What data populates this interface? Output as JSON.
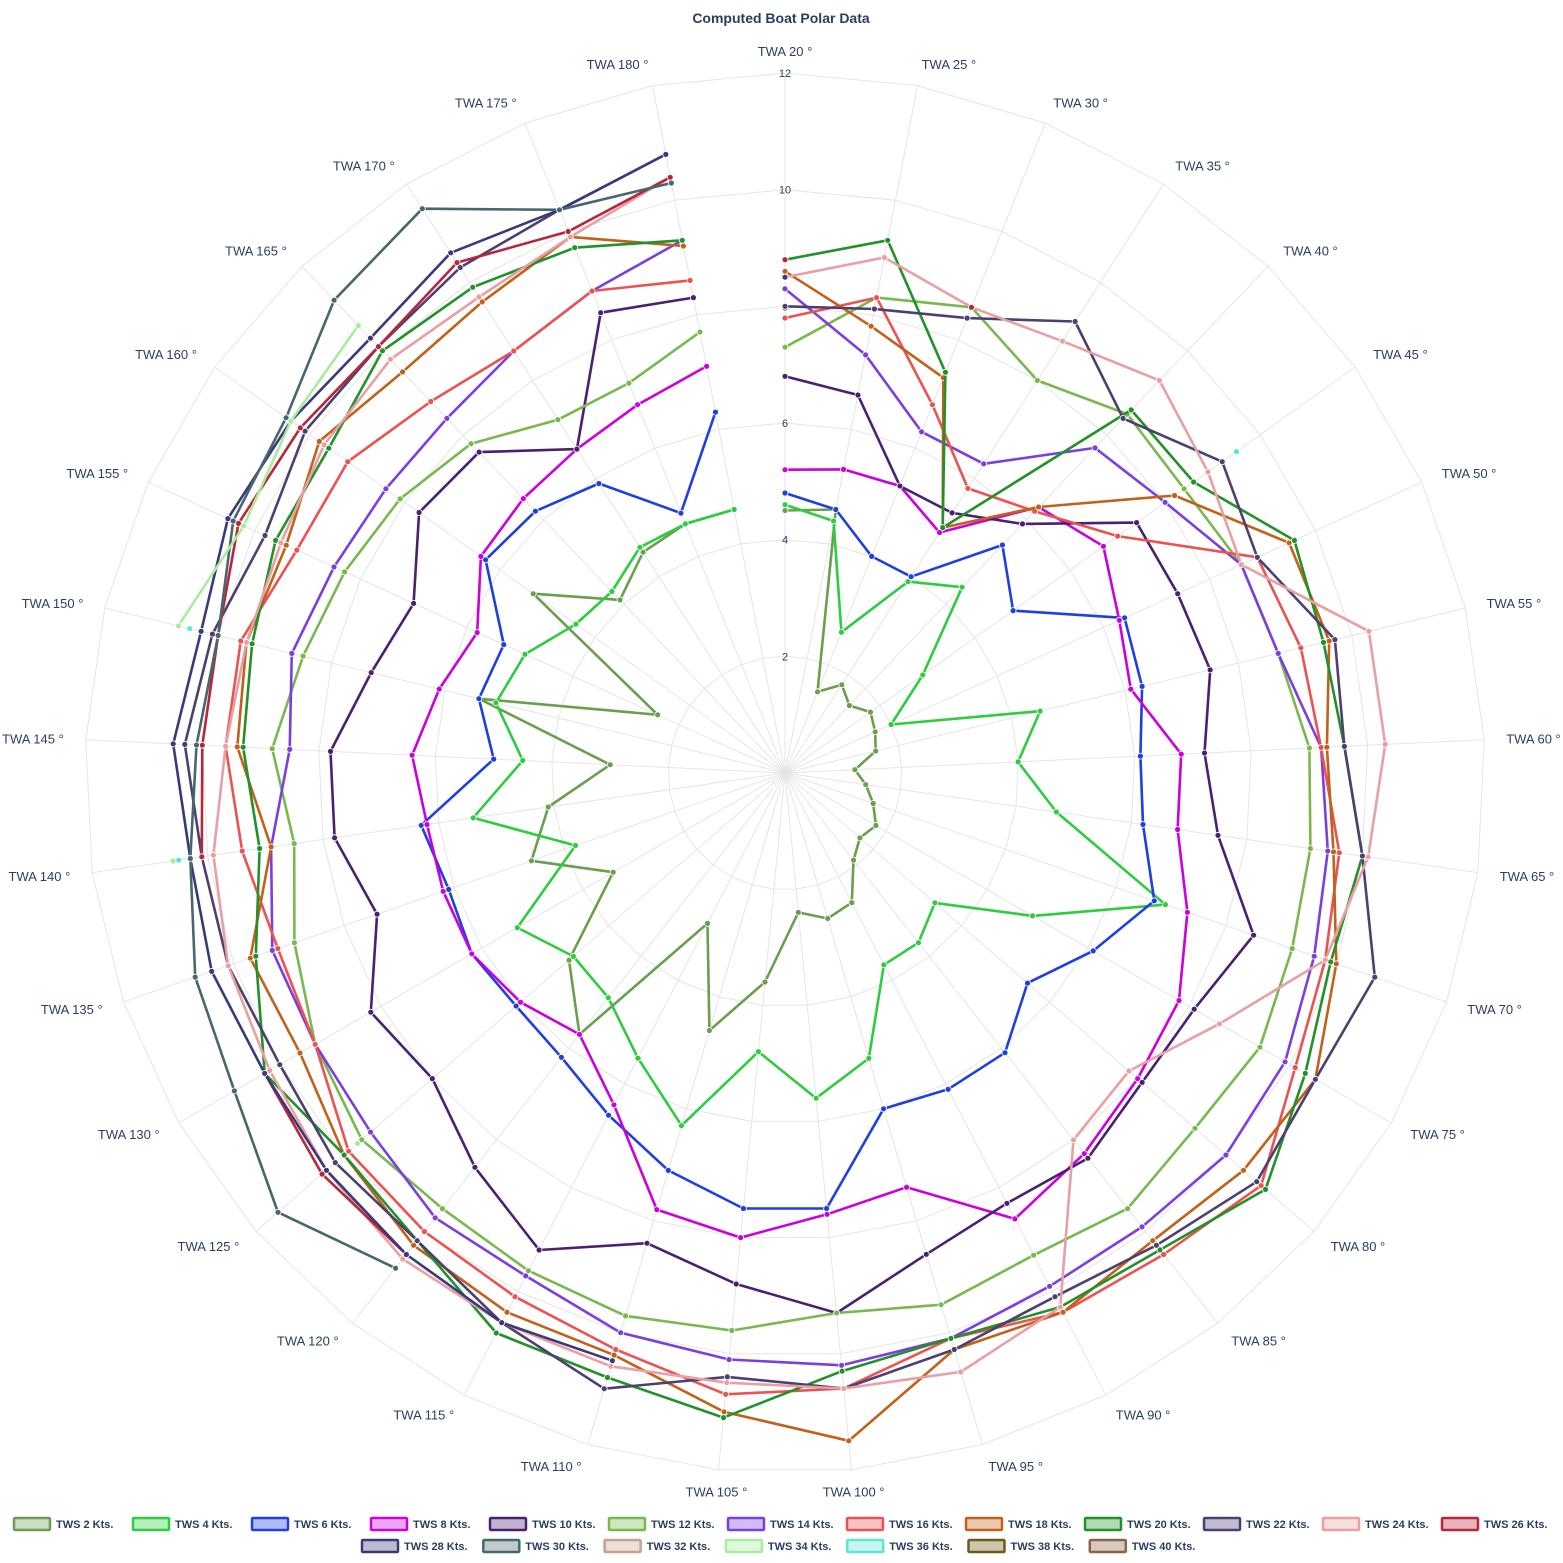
{
  "chart_data": {
    "type": "polar-line",
    "title": "Computed Boat Polar Data",
    "radial_range": [
      0,
      12
    ],
    "radial_ticks": [
      2,
      4,
      6,
      8,
      10,
      12
    ],
    "angular_categories": [
      "TWA 20 °",
      "TWA 25 °",
      "TWA 30 °",
      "TWA 35 °",
      "TWA 40 °",
      "TWA 45 °",
      "TWA 50 °",
      "TWA 55 °",
      "TWA 60 °",
      "TWA 65 °",
      "TWA 70 °",
      "TWA 75 °",
      "TWA 80 °",
      "TWA 85 °",
      "TWA 90 °",
      "TWA 95 °",
      "TWA 100 °",
      "TWA 105 °",
      "TWA 110 °",
      "TWA 115 °",
      "TWA 120 °",
      "TWA 125 °",
      "TWA 130 °",
      "TWA 135 °",
      "TWA 140 °",
      "TWA 145 °",
      "TWA 150 °",
      "TWA 155 °",
      "TWA 160 °",
      "TWA 165 °",
      "TWA 170 °",
      "TWA 175 °",
      "TWA 180 °"
    ],
    "grid": true,
    "legend_position": "bottom",
    "series": [
      {
        "name": "TWS 2 Kts.",
        "color": "#6b9e4f",
        "values": [
          4.5,
          4.6,
          1.5,
          1.8,
          1.6,
          1.8,
          1.7,
          1.6,
          1.2,
          1.4,
          1.6,
          1.8,
          1.7,
          1.9,
          2.5,
          2.6,
          2.4,
          3.6,
          4.6,
          2.9,
          5.7,
          4.9,
          3.4,
          4.6,
          4.1,
          3.0,
          5.4,
          2.4,
          5.3,
          4.1,
          4.5,
          4.6,
          4.6
        ]
      },
      {
        "name": "TWS 4 Kts.",
        "color": "#2ecc40",
        "values": [
          4.6,
          4.4,
          2.6,
          3.9,
          4.4,
          2.9,
          2.0,
          4.5,
          4.0,
          4.7,
          6.9,
          4.9,
          3.4,
          3.7,
          3.7,
          5.1,
          5.6,
          4.8,
          6.3,
          5.5,
          4.9,
          4.8,
          5.3,
          3.8,
          5.4,
          4.5,
          5.1,
          4.9,
          4.4,
          4.3,
          4.6,
          4.6,
          4.6
        ]
      },
      {
        "name": "TWS 6 Kts.",
        "color": "#1f3fe0",
        "values": [
          4.8,
          4.6,
          4.0,
          4.0,
          5.4,
          4.8,
          6.4,
          6.3,
          6.1,
          6.2,
          6.7,
          6.1,
          5.5,
          6.1,
          6.1,
          6.0,
          7.5,
          7.5,
          7.1,
          6.6,
          6.2,
          6.1,
          6.2,
          6.1,
          6.3,
          5.0,
          5.4,
          5.3,
          6.3,
          6.2,
          5.9,
          4.8,
          6.3
        ]
      },
      {
        "name": "TWS 8 Kts.",
        "color": "#cc00dd",
        "values": [
          5.2,
          5.3,
          5.3,
          4.9,
          6.3,
          6.7,
          6.3,
          6.1,
          6.8,
          6.8,
          7.3,
          7.8,
          8.0,
          8.3,
          8.6,
          7.4,
          7.6,
          8.0,
          7.8,
          6.4,
          5.7,
          6.0,
          6.2,
          6.2,
          6.2,
          6.4,
          6.1,
          5.8,
          6.4,
          6.5,
          6.6,
          6.8,
          7.1
        ]
      },
      {
        "name": "TWS 10 Kts.",
        "color": "#4a2070",
        "values": [
          6.8,
          6.6,
          5.3,
          5.3,
          5.9,
          7.4,
          7.4,
          7.5,
          7.2,
          7.5,
          8.5,
          8.1,
          8.1,
          8.4,
          8.3,
          8.6,
          9.3,
          8.8,
          8.4,
          9.2,
          8.6,
          8.0,
          8.2,
          7.4,
          7.8,
          7.8,
          7.3,
          7.0,
          7.7,
          7.6,
          6.6,
          8.5,
          8.3
        ]
      },
      {
        "name": "TWS 12 Kts.",
        "color": "#79b84e",
        "values": [
          7.3,
          8.3,
          8.6,
          8.0,
          8.5,
          8.4,
          8.6,
          8.7,
          9.0,
          9.1,
          9.2,
          9.4,
          9.3,
          9.5,
          9.3,
          9.5,
          9.3,
          9.6,
          9.7,
          9.6,
          9.5,
          9.6,
          9.3,
          8.9,
          8.5,
          8.8,
          8.5,
          8.3,
          8.1,
          7.8,
          7.2,
          7.2,
          7.7
        ]
      },
      {
        "name": "TWS 14 Kts.",
        "color": "#7b3fe0",
        "values": [
          8.3,
          7.3,
          6.3,
          6.3,
          7.7,
          8.0,
          8.6,
          8.7,
          9.2,
          9.4,
          9.6,
          9.9,
          10.0,
          9.9,
          9.9,
          10.1,
          10.2,
          10.1,
          10.0,
          9.7,
          9.7,
          9.4,
          9.3,
          9.3,
          8.9,
          8.5,
          8.7,
          8.5,
          8.4,
          8.4,
          8.6,
          8.9,
          9.3
        ]
      },
      {
        "name": "TWS 16 Kts.",
        "color": "#ec5252",
        "values": [
          7.8,
          8.3,
          6.8,
          5.8,
          6.2,
          7.0,
          8.9,
          9.1,
          9.2,
          9.6,
          9.8,
          10.1,
          10.8,
          10.5,
          10.4,
          10.1,
          10.6,
          10.7,
          10.3,
          10.1,
          10.0,
          9.9,
          9.3,
          9.2,
          9.4,
          9.6,
          9.6,
          9.2,
          9.2,
          8.8,
          8.6,
          8.9,
          8.6
        ]
      },
      {
        "name": "TWS 18 Kts.",
        "color": "#c2611a",
        "values": [
          8.6,
          7.8,
          7.3,
          5.0,
          6.3,
          8.2,
          9.5,
          9.6,
          9.3,
          9.5,
          10.0,
          10.5,
          10.4,
          10.2,
          10.4,
          10.3,
          11.5,
          11.0,
          10.4,
          10.4,
          10.3,
          10.0,
          9.6,
          9.7,
          8.9,
          9.4,
          9.5,
          9.4,
          9.8,
          9.5,
          9.6,
          9.9,
          9.2
        ]
      },
      {
        "name": "TWS 20 Kts.",
        "color": "#22912a",
        "values": [
          8.8,
          9.3,
          7.4,
          5.0,
          8.6,
          8.6,
          9.6,
          9.5,
          9.6,
          10.0,
          9.9,
          10.3,
          10.9,
          10.4,
          10.3,
          10.1,
          10.3,
          11.1,
          10.8,
          10.8,
          10.2,
          10.0,
          10.3,
          9.6,
          9.1,
          9.3,
          9.4,
          9.6,
          9.6,
          10.0,
          9.9,
          9.7,
          9.3
        ]
      },
      {
        "name": "TWS 22 Kts.",
        "color": "#4d4070",
        "values": [
          8.0,
          8.1,
          8.4,
          9.2,
          8.4,
          9.2,
          8.9,
          9.7,
          9.6,
          10.0,
          10.7,
          10.5,
          10.7,
          10.3,
          10.1,
          10.3,
          10.6,
          10.4,
          11.0,
          10.6,
          10.2,
          10.2,
          10.0,
          10.1,
          10.1,
          10.3,
          10.1,
          9.8,
          10.1,
          10.1,
          10.3,
          10.4,
          10.8
        ]
      },
      {
        "name": "TWS 24 Kts.",
        "color": "#e8a0a4",
        "values": [
          8.5,
          9.0,
          8.6,
          8.8,
          9.3,
          8.9,
          8.6,
          10.3,
          10.3,
          10.1,
          9.8,
          8.6,
          7.8,
          8.0,
          10.3,
          10.7,
          10.6,
          10.5,
          10.6,
          10.6,
          10.6,
          10.4,
          10.2,
          10.1,
          9.9,
          9.6,
          9.5,
          9.5,
          9.7,
          9.8,
          9.7,
          9.9,
          10.4
        ]
      },
      {
        "name": "TWS 26 Kts.",
        "color": "#b8263c",
        "values": [
          8.8,
          null,
          8.6,
          null,
          null,
          null,
          null,
          null,
          null,
          null,
          null,
          null,
          null,
          null,
          null,
          null,
          null,
          null,
          null,
          null,
          10.5,
          10.5,
          10.3,
          null,
          10.1,
          10.0,
          10.0,
          10.3,
          10.2,
          10.1,
          10.4,
          10.0,
          10.4
        ]
      },
      {
        "name": "TWS 28 Kts.",
        "color": "#3a3a7a",
        "values": [
          8.5,
          null,
          null,
          null,
          null,
          null,
          null,
          null,
          null,
          null,
          null,
          null,
          null,
          null,
          null,
          null,
          null,
          null,
          10.5,
          10.6,
          10.5,
          10.4,
          10.3,
          10.4,
          10.3,
          10.5,
          10.3,
          10.5,
          10.4,
          10.3,
          10.6,
          10.4,
          10.8
        ]
      },
      {
        "name": "TWS 30 Kts.",
        "color": "#47676e",
        "values": [
          null,
          null,
          null,
          null,
          null,
          null,
          null,
          null,
          null,
          null,
          null,
          null,
          null,
          null,
          null,
          null,
          null,
          null,
          null,
          null,
          10.8,
          11.5,
          10.9,
          10.7,
          10.3,
          10.1,
          10.0,
          10.4,
          10.5,
          11.2,
          11.5,
          10.4,
          10.3
        ]
      },
      {
        "name": "TWS 32 Kts.",
        "color": "#c9a08e",
        "values": [
          null,
          null,
          null,
          null,
          null,
          null,
          null,
          null,
          null,
          null,
          null,
          null,
          null,
          null,
          null,
          null,
          null,
          null,
          null,
          null,
          null,
          null,
          null,
          null,
          null,
          null,
          null,
          null,
          null,
          null,
          null,
          null,
          null
        ]
      },
      {
        "name": "TWS 34 Kts.",
        "color": "#a8ec9e",
        "values": [
          null,
          null,
          null,
          null,
          null,
          null,
          null,
          null,
          null,
          null,
          null,
          null,
          null,
          null,
          null,
          null,
          null,
          null,
          null,
          null,
          null,
          9.7,
          null,
          null,
          10.6,
          null,
          10.7,
          10.2,
          10.4,
          10.6,
          null,
          null,
          null
        ]
      },
      {
        "name": "TWS 36 Kts.",
        "color": "#5ee6d5",
        "values": [
          null,
          null,
          null,
          null,
          null,
          9.5,
          null,
          null,
          null,
          null,
          null,
          null,
          null,
          null,
          null,
          null,
          null,
          null,
          null,
          null,
          null,
          null,
          null,
          null,
          10.5,
          null,
          10.5,
          null,
          null,
          null,
          null,
          null,
          null
        ]
      },
      {
        "name": "TWS 38 Kts.",
        "color": "#6e5a1a",
        "values": [
          null,
          null,
          null,
          null,
          null,
          null,
          null,
          null,
          null,
          null,
          null,
          null,
          null,
          null,
          null,
          null,
          null,
          null,
          null,
          null,
          null,
          null,
          null,
          null,
          null,
          null,
          null,
          null,
          null,
          null,
          null,
          null,
          null
        ]
      },
      {
        "name": "TWS 40 Kts.",
        "color": "#8b6347",
        "values": [
          null,
          null,
          null,
          null,
          null,
          null,
          null,
          null,
          null,
          null,
          null,
          null,
          null,
          null,
          null,
          null,
          null,
          null,
          null,
          null,
          null,
          null,
          null,
          null,
          null,
          null,
          null,
          null,
          null,
          null,
          null,
          null,
          null
        ]
      }
    ]
  }
}
